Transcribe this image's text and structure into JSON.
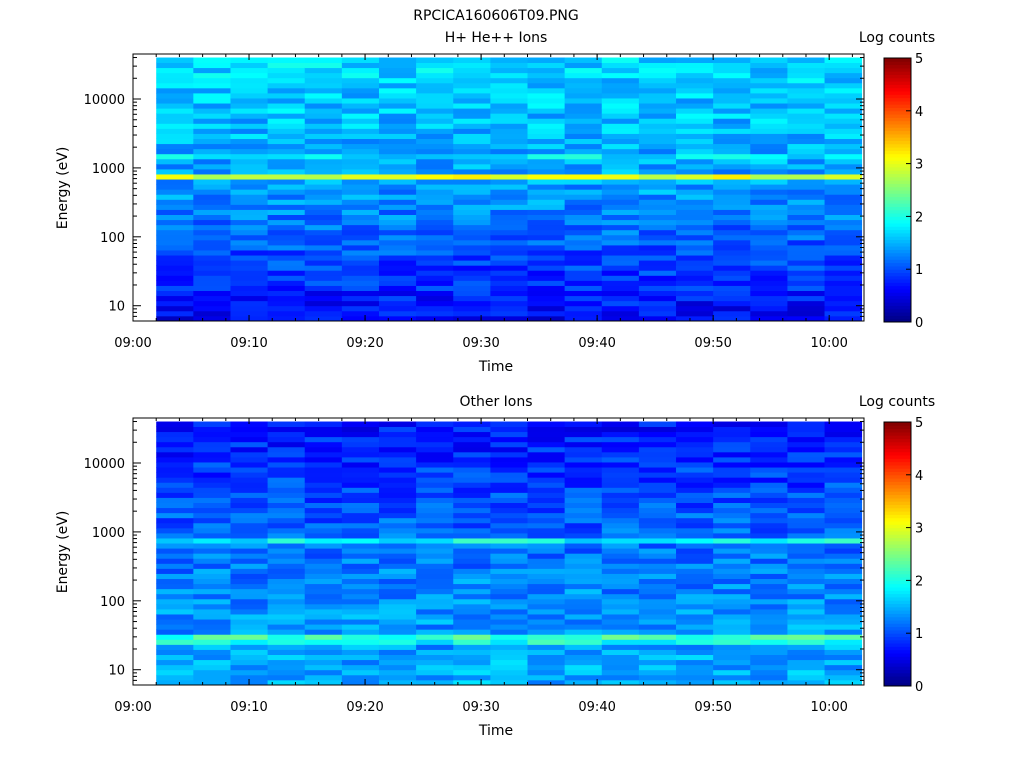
{
  "figure_title": "RPCICA160606T09.PNG",
  "colors": {
    "colormap": [
      "#00007f",
      "#0000ff",
      "#007fff",
      "#00ffff",
      "#7fff7f",
      "#ffff00",
      "#ff7f00",
      "#ff0000",
      "#7f0000"
    ]
  },
  "chart_data": [
    {
      "type": "heatmap",
      "title": "H+ He++ Ions",
      "xlabel": "Time",
      "ylabel": "Energy (eV)",
      "xlim": [
        "09:00",
        "10:03"
      ],
      "ylim": [
        6,
        45000
      ],
      "yscale": "log",
      "xticks": [
        "09:00",
        "09:10",
        "09:20",
        "09:30",
        "09:40",
        "09:50",
        "10:00"
      ],
      "yticks": [
        10,
        100,
        1000,
        10000
      ],
      "ytick_labels": [
        "10",
        "100",
        "1000",
        "10000"
      ],
      "data_start": "09:02",
      "time_bin_minutes": 3.2,
      "time_bins": 19,
      "energy_bins": 52,
      "energy_range_eV": [
        6,
        40000
      ],
      "peaks": [
        {
          "energy_eV": 750,
          "log_counts": 3.0,
          "width": 0.04
        },
        {
          "energy_eV": 1550,
          "log_counts": 2.2,
          "width": 0.03
        }
      ],
      "base_log_counts_low_energy": 0.6,
      "base_log_counts_mid_energy": 1.4,
      "base_log_counts_high_energy": 1.7,
      "colorbar": {
        "label": "Log counts",
        "range": [
          0,
          5
        ],
        "ticks": [
          0,
          1,
          2,
          3,
          4,
          5
        ]
      }
    },
    {
      "type": "heatmap",
      "title": "Other Ions",
      "xlabel": "Time",
      "ylabel": "Energy (eV)",
      "xlim": [
        "09:00",
        "10:03"
      ],
      "ylim": [
        6,
        45000
      ],
      "yscale": "log",
      "xticks": [
        "09:00",
        "09:10",
        "09:20",
        "09:30",
        "09:40",
        "09:50",
        "10:00"
      ],
      "yticks": [
        10,
        100,
        1000,
        10000
      ],
      "ytick_labels": [
        "10",
        "100",
        "1000",
        "10000"
      ],
      "data_start": "09:02",
      "time_bin_minutes": 3.2,
      "time_bins": 19,
      "energy_bins": 52,
      "energy_range_eV": [
        6,
        40000
      ],
      "peaks": [
        {
          "energy_eV": 28,
          "log_counts": 2.4,
          "width": 0.06
        },
        {
          "energy_eV": 740,
          "log_counts": 1.9,
          "width": 0.03
        }
      ],
      "base_log_counts_low_energy": 1.5,
      "base_log_counts_mid_energy": 1.2,
      "base_log_counts_high_energy": 0.7,
      "colorbar": {
        "label": "Log counts",
        "range": [
          0,
          5
        ],
        "ticks": [
          0,
          1,
          2,
          3,
          4,
          5
        ]
      }
    }
  ]
}
